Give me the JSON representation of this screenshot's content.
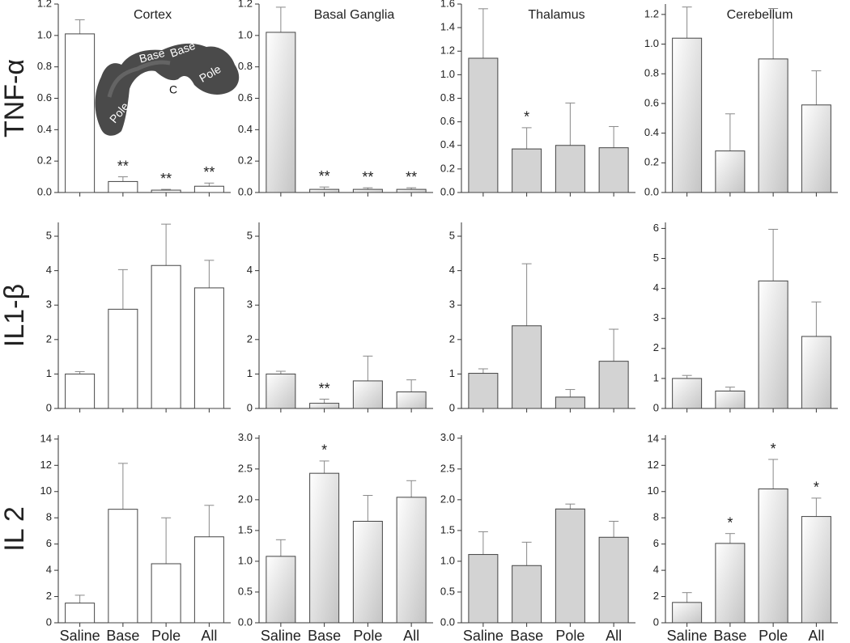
{
  "chart_data": [
    {
      "type": "bar",
      "title": "Cortex",
      "ylabel": "TNF-α",
      "categories": [
        null,
        null,
        null,
        null
      ],
      "values": [
        1.01,
        0.07,
        0.015,
        0.04
      ],
      "errors": [
        0.09,
        0.03,
        0.005,
        0.02
      ],
      "significance": [
        null,
        "**",
        "**",
        "**"
      ],
      "color": "#ffffff",
      "gradient": false,
      "ylim": [
        0,
        1.2
      ],
      "yticks": [
        {
          "value": 0,
          "label": "0.0"
        },
        {
          "value": 0.2,
          "label": "0.2"
        },
        {
          "value": 0.4,
          "label": "0.4"
        },
        {
          "value": 0.6,
          "label": "0.6"
        },
        {
          "value": 0.8,
          "label": "0.8"
        },
        {
          "value": 1,
          "label": "1.0"
        },
        {
          "value": 1.2,
          "label": "1.2"
        }
      ],
      "inset_labels": [
        "Base",
        "Base",
        "Pole",
        "Pole",
        "C"
      ]
    },
    {
      "type": "bar",
      "title": "Basal Ganglia",
      "categories": [
        null,
        null,
        null,
        null
      ],
      "values": [
        1.02,
        0.02,
        0.02,
        0.02
      ],
      "errors": [
        0.16,
        0.015,
        0.01,
        0.01
      ],
      "significance": [
        null,
        "**",
        "**",
        "**"
      ],
      "color": "#d0d0d0",
      "gradient": true,
      "ylim": [
        0,
        1.2
      ],
      "yticks": [
        {
          "value": 0,
          "label": "0.0"
        },
        {
          "value": 0.2,
          "label": "0.2"
        },
        {
          "value": 0.4,
          "label": "0.4"
        },
        {
          "value": 0.6,
          "label": "0.6"
        },
        {
          "value": 0.8,
          "label": "0.8"
        },
        {
          "value": 1,
          "label": "1.0"
        },
        {
          "value": 1.2,
          "label": "1.2"
        }
      ]
    },
    {
      "type": "bar",
      "title": "Thalamus",
      "categories": [
        null,
        null,
        null,
        null
      ],
      "values": [
        1.14,
        0.37,
        0.4,
        0.38
      ],
      "errors": [
        0.42,
        0.18,
        0.36,
        0.18
      ],
      "significance": [
        null,
        "*",
        null,
        null
      ],
      "color": "#d3d3d3",
      "gradient": false,
      "ylim": [
        0,
        1.6
      ],
      "yticks": [
        {
          "value": 0,
          "label": "0.0"
        },
        {
          "value": 0.2,
          "label": "0.2"
        },
        {
          "value": 0.4,
          "label": "0.4"
        },
        {
          "value": 0.6,
          "label": "0.6"
        },
        {
          "value": 0.8,
          "label": "0.8"
        },
        {
          "value": 1,
          "label": "1.0"
        },
        {
          "value": 1.2,
          "label": "1.2"
        },
        {
          "value": 1.4,
          "label": "1.4"
        },
        {
          "value": 1.6,
          "label": "1.6"
        }
      ]
    },
    {
      "type": "bar",
      "title": "Cerebellum",
      "categories": [
        null,
        null,
        null,
        null
      ],
      "values": [
        1.04,
        0.28,
        0.9,
        0.59
      ],
      "errors": [
        0.21,
        0.25,
        0.34,
        0.23
      ],
      "significance": [
        null,
        null,
        null,
        null
      ],
      "color": "#d0d0d0",
      "gradient": true,
      "ylim": [
        0,
        1.27
      ],
      "yticks": [
        {
          "value": 0,
          "label": "0.0"
        },
        {
          "value": 0.2,
          "label": "0.2"
        },
        {
          "value": 0.4,
          "label": "0.4"
        },
        {
          "value": 0.6,
          "label": "0.6"
        },
        {
          "value": 0.8,
          "label": "0.8"
        },
        {
          "value": 1,
          "label": "1.0"
        },
        {
          "value": 1.2,
          "label": "1.2"
        }
      ]
    },
    {
      "type": "bar",
      "ylabel": "IL1-β",
      "categories": [
        null,
        null,
        null,
        null
      ],
      "values": [
        1.0,
        2.88,
        4.15,
        3.5
      ],
      "errors": [
        0.07,
        1.15,
        1.2,
        0.8
      ],
      "significance": [
        null,
        null,
        null,
        null
      ],
      "color": "#ffffff",
      "gradient": false,
      "ylim": [
        0,
        5.4
      ],
      "yticks": [
        0,
        1,
        2,
        3,
        4,
        5
      ]
    },
    {
      "type": "bar",
      "categories": [
        null,
        null,
        null,
        null
      ],
      "values": [
        1.0,
        0.15,
        0.8,
        0.48
      ],
      "errors": [
        0.08,
        0.12,
        0.72,
        0.35
      ],
      "significance": [
        null,
        "**",
        null,
        null
      ],
      "color": "#d0d0d0",
      "gradient": true,
      "ylim": [
        0,
        5.4
      ],
      "yticks": [
        0,
        1,
        2,
        3,
        4,
        5
      ]
    },
    {
      "type": "bar",
      "categories": [
        null,
        null,
        null,
        null
      ],
      "values": [
        1.02,
        2.4,
        0.33,
        1.37
      ],
      "errors": [
        0.13,
        1.8,
        0.22,
        0.93
      ],
      "significance": [
        null,
        null,
        null,
        null
      ],
      "color": "#d3d3d3",
      "gradient": false,
      "ylim": [
        0,
        5.4
      ],
      "yticks": [
        0,
        1,
        2,
        3,
        4,
        5
      ]
    },
    {
      "type": "bar",
      "categories": [
        null,
        null,
        null,
        null
      ],
      "values": [
        1.0,
        0.58,
        4.25,
        2.4
      ],
      "errors": [
        0.1,
        0.13,
        1.72,
        1.15
      ],
      "significance": [
        null,
        null,
        null,
        null
      ],
      "color": "#d0d0d0",
      "gradient": true,
      "ylim": [
        0,
        6.2
      ],
      "yticks": [
        0,
        1,
        2,
        3,
        4,
        5,
        6
      ]
    },
    {
      "type": "bar",
      "ylabel": "IL 2",
      "categories": [
        "Saline",
        "Base",
        "Pole",
        "All"
      ],
      "values": [
        1.5,
        8.65,
        4.5,
        6.55
      ],
      "errors": [
        0.6,
        3.5,
        3.5,
        2.4
      ],
      "significance": [
        null,
        null,
        null,
        null
      ],
      "color": "#ffffff",
      "gradient": false,
      "ylim": [
        0,
        14.3
      ],
      "yticks": [
        0,
        2,
        4,
        6,
        8,
        10,
        12,
        14
      ]
    },
    {
      "type": "bar",
      "categories": [
        "Saline",
        "Base",
        "Pole",
        "All"
      ],
      "values": [
        1.08,
        2.43,
        1.65,
        2.04
      ],
      "errors": [
        0.27,
        0.2,
        0.42,
        0.27
      ],
      "significance": [
        null,
        "*",
        null,
        null
      ],
      "color": "#d0d0d0",
      "gradient": true,
      "ylim": [
        0,
        3.05
      ],
      "yticks": [
        {
          "value": 0,
          "label": "0.0"
        },
        {
          "value": 0.5,
          "label": "0.5"
        },
        {
          "value": 1,
          "label": "1.0"
        },
        {
          "value": 1.5,
          "label": "1.5"
        },
        {
          "value": 2,
          "label": "2.0"
        },
        {
          "value": 2.5,
          "label": "2.5"
        },
        {
          "value": 3,
          "label": "3.0"
        }
      ]
    },
    {
      "type": "bar",
      "categories": [
        "Saline",
        "Base",
        "Pole",
        "All"
      ],
      "values": [
        1.11,
        0.93,
        1.85,
        1.39
      ],
      "errors": [
        0.37,
        0.38,
        0.08,
        0.26
      ],
      "significance": [
        null,
        null,
        null,
        null
      ],
      "color": "#d3d3d3",
      "gradient": false,
      "ylim": [
        0,
        3.05
      ],
      "yticks": [
        {
          "value": 0,
          "label": "0.0"
        },
        {
          "value": 0.5,
          "label": "0.5"
        },
        {
          "value": 1,
          "label": "1.0"
        },
        {
          "value": 1.5,
          "label": "1.5"
        },
        {
          "value": 2,
          "label": "2.0"
        },
        {
          "value": 2.5,
          "label": "2.5"
        },
        {
          "value": 3,
          "label": "3.0"
        }
      ]
    },
    {
      "type": "bar",
      "categories": [
        "Saline",
        "Base",
        "Pole",
        "All"
      ],
      "values": [
        1.55,
        6.05,
        10.2,
        8.1
      ],
      "errors": [
        0.75,
        0.75,
        2.25,
        1.4
      ],
      "significance": [
        null,
        "*",
        "*",
        "*"
      ],
      "color": "#d0d0d0",
      "gradient": true,
      "ylim": [
        0,
        14.3
      ],
      "yticks": [
        0,
        2,
        4,
        6,
        8,
        10,
        12,
        14
      ]
    }
  ]
}
